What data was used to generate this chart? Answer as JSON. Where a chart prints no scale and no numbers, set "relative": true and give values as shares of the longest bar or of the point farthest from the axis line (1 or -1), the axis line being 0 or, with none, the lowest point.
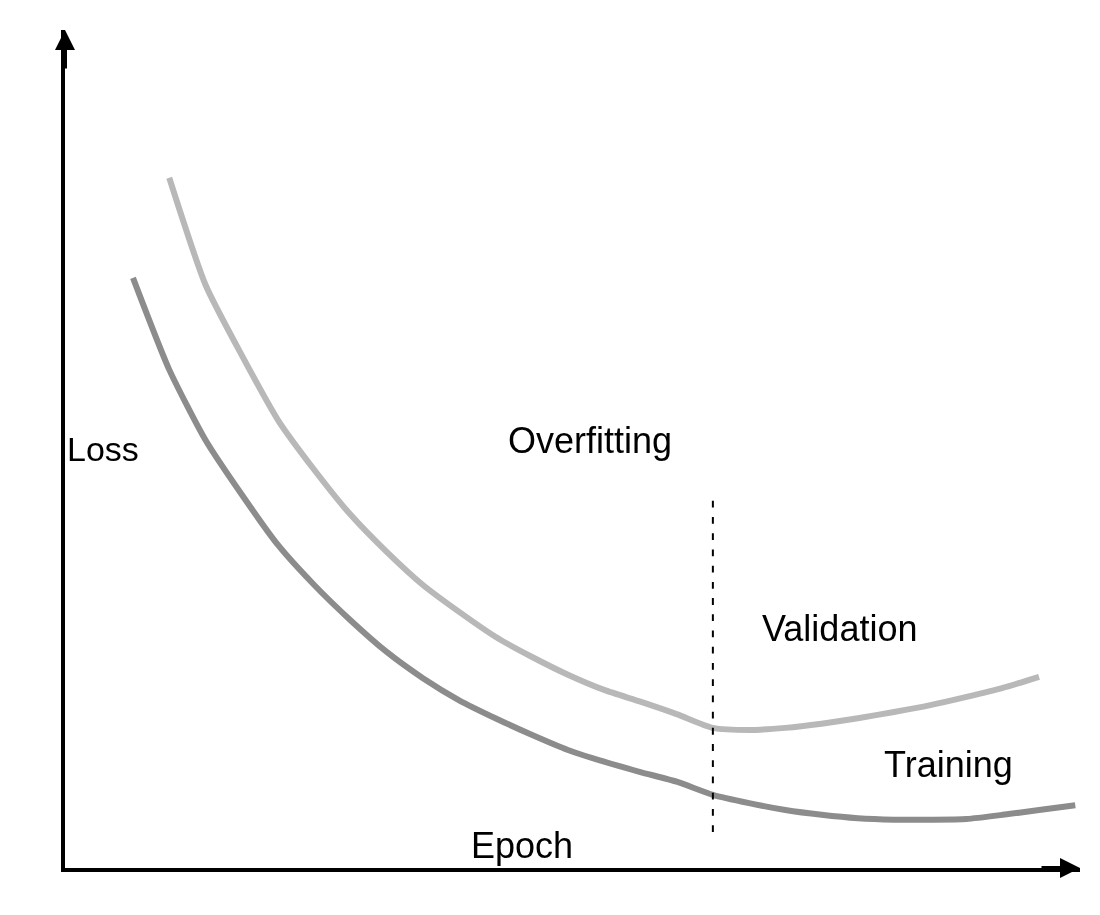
{
  "chart_data": {
    "type": "line",
    "relative": true,
    "legend": false,
    "xlabel": "Epoch",
    "ylabel": "Loss",
    "categories": [
      null,
      null,
      null,
      null,
      null,
      null,
      null,
      null,
      null,
      null,
      null,
      null,
      null,
      null,
      null,
      null,
      null,
      null,
      null,
      null,
      null,
      null,
      null,
      null,
      null,
      null,
      null
    ],
    "series": [
      {
        "name": "Validation",
        "color": "#b8b8b8",
        "values": [
          null,
          1.0,
          0.845,
          0.743,
          0.649,
          0.577,
          0.512,
          0.458,
          0.41,
          0.371,
          0.335,
          0.306,
          0.28,
          0.258,
          0.241,
          0.223,
          0.203,
          0.2,
          0.203,
          0.209,
          0.217,
          0.226,
          0.236,
          0.248,
          0.261,
          0.277,
          null
        ]
      },
      {
        "name": "Training",
        "color": "#8c8c8c",
        "values": [
          0.855,
          0.722,
          0.62,
          0.541,
          0.468,
          0.41,
          0.359,
          0.313,
          0.275,
          0.243,
          0.217,
          0.193,
          0.171,
          0.154,
          0.139,
          0.125,
          0.106,
          0.094,
          0.084,
          0.077,
          0.072,
          0.07,
          0.07,
          0.071,
          0.077,
          0.084,
          0.091
        ]
      }
    ],
    "annotations": [
      "Overfitting"
    ]
  }
}
